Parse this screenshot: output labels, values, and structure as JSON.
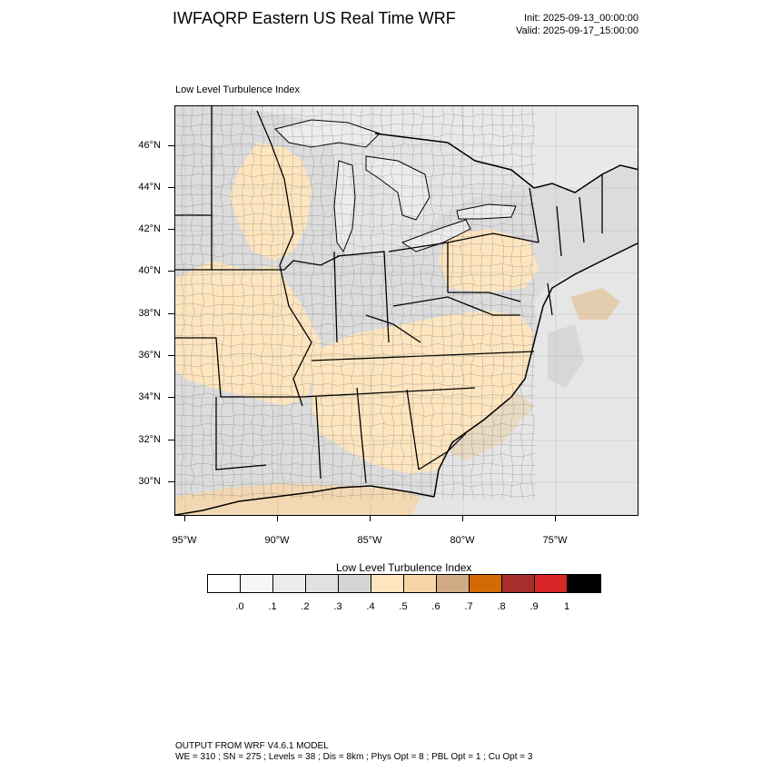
{
  "header": {
    "title": "IWFAQRP Eastern US Real Time WRF",
    "init": "Init: 2025-09-13_00:00:00",
    "valid": "Valid: 2025-09-17_15:00:00"
  },
  "map": {
    "subtitle": "Low Level Turbulence Index",
    "lat_labels": [
      "46°N",
      "44°N",
      "42°N",
      "40°N",
      "38°N",
      "36°N",
      "34°N",
      "32°N",
      "30°N"
    ],
    "lon_labels": [
      "95°W",
      "90°W",
      "85°W",
      "80°W",
      "75°W"
    ],
    "extent": {
      "lon": [
        -95.5,
        -70.5
      ],
      "lat": [
        28.4,
        47.8
      ]
    },
    "colors": {
      "water": "#ececec",
      "outer": "#e4e4e4",
      "land_low": "#dcdcdc",
      "land_mid": "#fde5bf",
      "tan": "#d9b489",
      "county": "#333333",
      "state": "#000000"
    }
  },
  "colorbar": {
    "title": "Low Level Turbulence Index",
    "colors": [
      "#ffffff",
      "#f6f6f6",
      "#ececec",
      "#e1e1e1",
      "#d4d4d4",
      "#fde5bf",
      "#f6d6a7",
      "#cfaa85",
      "#d46a05",
      "#a82d2d",
      "#d82626",
      "#000000"
    ],
    "labels": [
      ".0",
      ".1",
      ".2",
      ".3",
      ".4",
      ".5",
      ".6",
      ".7",
      ".8",
      ".9",
      "1"
    ]
  },
  "footer": {
    "line1": "OUTPUT FROM WRF V4.6.1 MODEL",
    "line2": "WE = 310 ; SN = 275 ; Levels = 38 ; Dis = 8km ; Phys Opt = 8 ; PBL Opt = 1 ; Cu Opt = 3"
  }
}
